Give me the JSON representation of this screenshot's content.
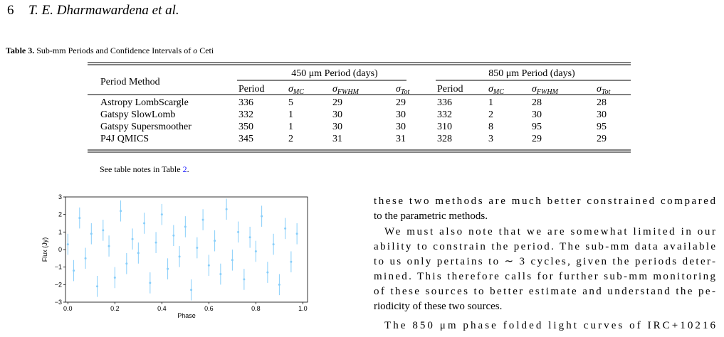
{
  "header": {
    "page_number": "6",
    "authors": "T. E. Dharmawardena et al."
  },
  "caption": {
    "label": "Table 3.",
    "text": "Sub-mm Periods and Confidence Intervals of",
    "object_italic": "o",
    "object_rest": "Ceti"
  },
  "table": {
    "method_header": "Period Method",
    "group_headers": [
      "450 μm Period (days)",
      "850 μm Period (days)"
    ],
    "sub_headers": [
      {
        "text": "Period"
      },
      {
        "symbol": "σ",
        "sub": "MC"
      },
      {
        "symbol": "σ",
        "sub": "FWHM"
      },
      {
        "symbol": "σ",
        "sub": "Tot"
      },
      {
        "text": "Period"
      },
      {
        "symbol": "σ",
        "sub": "MC"
      },
      {
        "symbol": "σ",
        "sub": "FWHM"
      },
      {
        "symbol": "σ",
        "sub": "Tot"
      }
    ],
    "rows": [
      [
        "Astropy LombScargle",
        336,
        5,
        29,
        29,
        336,
        1,
        28,
        28
      ],
      [
        "Gatspy SlowLomb",
        332,
        1,
        30,
        30,
        332,
        2,
        30,
        30
      ],
      [
        "Gatspy Supersmoother",
        350,
        1,
        30,
        30,
        310,
        8,
        95,
        95
      ],
      [
        "P4J QMICS",
        345,
        2,
        31,
        31,
        328,
        3,
        29,
        29
      ]
    ]
  },
  "table_note": {
    "text": "See table notes in Table",
    "link": "2",
    "end": "."
  },
  "body_lines": [
    "these two methods are much better constrained compared",
    "to the parametric methods.",
    "We must also note that we are somewhat limited in our",
    "ability to constrain the period. The sub-mm data available",
    "to us only pertains to ∼ 3 cycles, given the periods deter-",
    "mined. This therefore calls for further sub-mm monitoring",
    "of these sources to better estimate and understand the pe-",
    "riodicity of these two sources.",
    "The 850 μm phase folded light curves of IRC+10216"
  ],
  "chart_data": {
    "type": "errorbar",
    "xlabel": "Phase",
    "ylabel": "Flux (Jy)",
    "color": "#87cefa",
    "xlim": [
      -0.01,
      1.02
    ],
    "ylim": [
      -3,
      3
    ],
    "xticks": [
      {
        "value": 0,
        "label": "0.0"
      },
      {
        "value": 0.2,
        "label": "0.2"
      },
      {
        "value": 0.4,
        "label": "0.4"
      },
      {
        "value": 0.6,
        "label": "0.6"
      },
      {
        "value": 0.8,
        "label": "0.8"
      },
      {
        "value": 1,
        "label": "1.0"
      }
    ],
    "yticks": [
      {
        "value": -3,
        "label": "−3"
      },
      {
        "value": -2,
        "label": "−2"
      },
      {
        "value": -1,
        "label": "−1"
      },
      0,
      1,
      2,
      3
    ],
    "yerr": 0.6,
    "x": [
      0.0,
      0.025,
      0.05,
      0.075,
      0.1,
      0.125,
      0.15,
      0.175,
      0.2,
      0.225,
      0.25,
      0.275,
      0.3,
      0.325,
      0.35,
      0.375,
      0.4,
      0.425,
      0.45,
      0.475,
      0.5,
      0.525,
      0.55,
      0.575,
      0.6,
      0.625,
      0.65,
      0.675,
      0.7,
      0.725,
      0.75,
      0.775,
      0.8,
      0.825,
      0.85,
      0.875,
      0.9,
      0.925,
      0.95,
      0.975
    ],
    "values": [
      0.3,
      -1.2,
      1.8,
      -0.5,
      0.9,
      -2.1,
      1.1,
      0.2,
      -1.6,
      2.2,
      -0.8,
      0.6,
      -0.2,
      1.5,
      -1.9,
      0.4,
      2.0,
      -1.1,
      0.8,
      -0.4,
      1.3,
      -2.3,
      0.1,
      1.7,
      -0.9,
      0.5,
      -1.4,
      2.3,
      -0.6,
      1.0,
      -1.7,
      0.7,
      -0.1,
      1.9,
      -1.3,
      0.3,
      -2.0,
      1.2,
      -0.7,
      0.9
    ]
  }
}
